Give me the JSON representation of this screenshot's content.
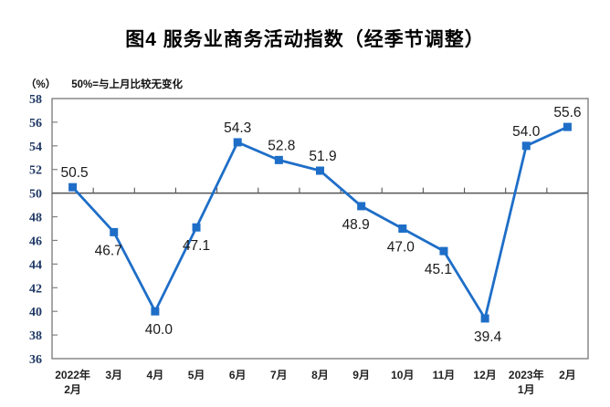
{
  "title": "图4 服务业商务活动指数（经季节调整）",
  "unit_label": "（%）",
  "reference_note": "50%=与上月比较无变化",
  "chart_data": {
    "type": "line",
    "title": "图4 服务业商务活动指数（经季节调整）",
    "ylabel": "（%）",
    "annotation": "50%=与上月比较无变化",
    "categories": [
      "2022年\n2月",
      "3月",
      "4月",
      "5月",
      "6月",
      "7月",
      "8月",
      "9月",
      "10月",
      "11月",
      "12月",
      "2023年\n1月",
      "2月"
    ],
    "values": [
      50.5,
      46.7,
      40.0,
      47.1,
      54.3,
      52.8,
      51.9,
      48.9,
      47.0,
      45.1,
      39.4,
      54.0,
      55.6
    ],
    "data_labels": [
      "50.5",
      "46.7",
      "40.0",
      "47.1",
      "54.3",
      "52.8",
      "51.9",
      "48.9",
      "47.0",
      "45.1",
      "39.4",
      "54.0",
      "55.6"
    ],
    "label_positions": [
      "above",
      "below",
      "below",
      "below",
      "above",
      "above",
      "above",
      "below",
      "below",
      "below",
      "below",
      "above",
      "above"
    ],
    "label_dx": [
      2,
      -6,
      4,
      0,
      0,
      3,
      3,
      -6,
      -2,
      -6,
      3,
      0,
      0
    ],
    "ylim": [
      36,
      58
    ],
    "yticks": [
      58,
      56,
      54,
      52,
      50,
      48,
      46,
      44,
      42,
      40,
      38,
      36
    ],
    "reference_line": 50,
    "grid": false,
    "legend": "none",
    "marker": "square",
    "colors": {
      "line": "#1E6EC8",
      "frame": "#808080",
      "reference_line": "#555555",
      "y_labels": "#1F3864",
      "x_labels": "#222222",
      "data_labels": "#1a1a1a"
    }
  }
}
